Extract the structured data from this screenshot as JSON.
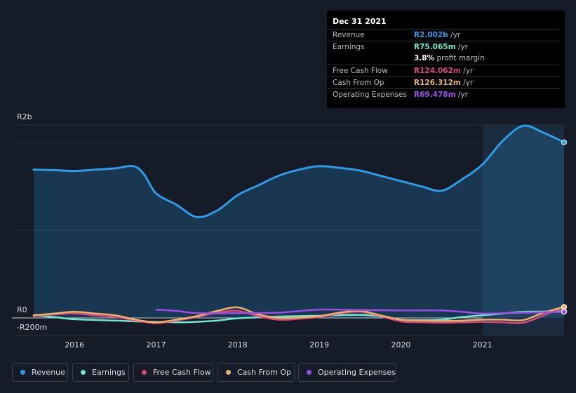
{
  "colors": {
    "revenue": "#2e9be6",
    "earnings": "#6fe8d0",
    "free_cash_flow": "#d9487b",
    "cash_from_op": "#e8b36a",
    "operating_expenses": "#9b4de6",
    "background": "#151b27"
  },
  "tooltip": {
    "date": "Dec 31 2021",
    "rows": [
      {
        "label": "Revenue",
        "value": "R2.002b",
        "unit": " /yr",
        "color": "#2e9be6"
      },
      {
        "label": "Earnings",
        "value": "R75.065m",
        "unit": " /yr",
        "color": "#6fe8d0"
      },
      {
        "label": "",
        "value": "3.8%",
        "unit": " profit margin",
        "color": "#ffffff"
      },
      {
        "label": "Free Cash Flow",
        "value": "R124.062m",
        "unit": " /yr",
        "color": "#d9487b"
      },
      {
        "label": "Cash From Op",
        "value": "R126.312m",
        "unit": " /yr",
        "color": "#e8b36a"
      },
      {
        "label": "Operating Expenses",
        "value": "R69.478m",
        "unit": " /yr",
        "color": "#9b4de6"
      }
    ]
  },
  "legend": [
    {
      "label": "Revenue",
      "color": "#2e9be6"
    },
    {
      "label": "Earnings",
      "color": "#6fe8d0"
    },
    {
      "label": "Free Cash Flow",
      "color": "#d9487b"
    },
    {
      "label": "Cash From Op",
      "color": "#e8b36a"
    },
    {
      "label": "Operating Expenses",
      "color": "#9b4de6"
    }
  ],
  "chart_data": {
    "type": "line",
    "title": "",
    "xlabel": "",
    "ylabel": "",
    "y_unit": "R millions",
    "ylim": [
      -200,
      2200
    ],
    "y_tick_labels": [
      {
        "value": 2000,
        "label": "R2b"
      },
      {
        "value": 0,
        "label": "R0"
      },
      {
        "value": -200,
        "label": "-R200m"
      }
    ],
    "xlim": [
      2015.5,
      2022.0
    ],
    "x_tick_labels": [
      {
        "value": 2016,
        "label": "2016"
      },
      {
        "value": 2017,
        "label": "2017"
      },
      {
        "value": 2018,
        "label": "2018"
      },
      {
        "value": 2019,
        "label": "2019"
      },
      {
        "value": 2020,
        "label": "2020"
      },
      {
        "value": 2021,
        "label": "2021"
      }
    ],
    "highlight_start": 2021.0,
    "series": [
      {
        "name": "Revenue",
        "key": "revenue",
        "fill": true,
        "points": [
          [
            2015.5,
            1690
          ],
          [
            2015.75,
            1685
          ],
          [
            2016.0,
            1675
          ],
          [
            2016.25,
            1690
          ],
          [
            2016.5,
            1705
          ],
          [
            2016.72,
            1730
          ],
          [
            2016.85,
            1640
          ],
          [
            2017.0,
            1420
          ],
          [
            2017.25,
            1290
          ],
          [
            2017.5,
            1150
          ],
          [
            2017.75,
            1225
          ],
          [
            2018.0,
            1400
          ],
          [
            2018.25,
            1510
          ],
          [
            2018.5,
            1620
          ],
          [
            2018.75,
            1690
          ],
          [
            2019.0,
            1730
          ],
          [
            2019.25,
            1710
          ],
          [
            2019.5,
            1680
          ],
          [
            2019.75,
            1620
          ],
          [
            2020.0,
            1560
          ],
          [
            2020.25,
            1500
          ],
          [
            2020.5,
            1450
          ],
          [
            2020.75,
            1580
          ],
          [
            2021.0,
            1750
          ],
          [
            2021.25,
            2020
          ],
          [
            2021.5,
            2190
          ],
          [
            2021.75,
            2110
          ],
          [
            2022.0,
            2002
          ]
        ]
      },
      {
        "name": "Earnings",
        "key": "earnings",
        "points": [
          [
            2015.5,
            30
          ],
          [
            2015.75,
            10
          ],
          [
            2016.0,
            -15
          ],
          [
            2016.5,
            -30
          ],
          [
            2016.75,
            -40
          ],
          [
            2017.0,
            -45
          ],
          [
            2017.25,
            -50
          ],
          [
            2017.5,
            -45
          ],
          [
            2017.75,
            -30
          ],
          [
            2018.0,
            -5
          ],
          [
            2018.5,
            15
          ],
          [
            2019.0,
            25
          ],
          [
            2019.5,
            35
          ],
          [
            2019.75,
            15
          ],
          [
            2020.0,
            -20
          ],
          [
            2020.25,
            -25
          ],
          [
            2020.5,
            -20
          ],
          [
            2020.75,
            10
          ],
          [
            2021.0,
            30
          ],
          [
            2021.25,
            50
          ],
          [
            2021.5,
            70
          ],
          [
            2021.75,
            72
          ],
          [
            2022.0,
            75
          ]
        ]
      },
      {
        "name": "Free Cash Flow",
        "key": "free_cash_flow",
        "points": [
          [
            2015.5,
            20
          ],
          [
            2015.75,
            40
          ],
          [
            2016.0,
            50
          ],
          [
            2016.25,
            30
          ],
          [
            2016.5,
            10
          ],
          [
            2016.75,
            -30
          ],
          [
            2017.0,
            -60
          ],
          [
            2017.25,
            -30
          ],
          [
            2017.5,
            10
          ],
          [
            2017.75,
            60
          ],
          [
            2018.0,
            80
          ],
          [
            2018.25,
            20
          ],
          [
            2018.5,
            -20
          ],
          [
            2018.75,
            -10
          ],
          [
            2019.0,
            10
          ],
          [
            2019.25,
            50
          ],
          [
            2019.5,
            70
          ],
          [
            2019.75,
            20
          ],
          [
            2020.0,
            -40
          ],
          [
            2020.25,
            -50
          ],
          [
            2020.5,
            -55
          ],
          [
            2020.75,
            -50
          ],
          [
            2021.0,
            -45
          ],
          [
            2021.25,
            -50
          ],
          [
            2021.5,
            -55
          ],
          [
            2021.75,
            30
          ],
          [
            2022.0,
            124
          ]
        ]
      },
      {
        "name": "Cash From Op",
        "key": "cash_from_op",
        "points": [
          [
            2015.5,
            30
          ],
          [
            2015.75,
            50
          ],
          [
            2016.0,
            70
          ],
          [
            2016.25,
            50
          ],
          [
            2016.5,
            30
          ],
          [
            2016.75,
            -20
          ],
          [
            2017.0,
            -50
          ],
          [
            2017.25,
            -20
          ],
          [
            2017.5,
            20
          ],
          [
            2017.75,
            80
          ],
          [
            2018.0,
            120
          ],
          [
            2018.25,
            40
          ],
          [
            2018.5,
            0
          ],
          [
            2018.75,
            5
          ],
          [
            2019.0,
            20
          ],
          [
            2019.25,
            60
          ],
          [
            2019.5,
            80
          ],
          [
            2019.75,
            30
          ],
          [
            2020.0,
            -20
          ],
          [
            2020.25,
            -30
          ],
          [
            2020.5,
            -35
          ],
          [
            2020.75,
            -30
          ],
          [
            2021.0,
            -20
          ],
          [
            2021.25,
            -20
          ],
          [
            2021.5,
            -25
          ],
          [
            2021.75,
            60
          ],
          [
            2022.0,
            126
          ]
        ]
      },
      {
        "name": "Operating Expenses",
        "key": "operating_expenses",
        "points": [
          [
            2017.0,
            95
          ],
          [
            2017.25,
            80
          ],
          [
            2017.5,
            55
          ],
          [
            2018.0,
            55
          ],
          [
            2018.5,
            60
          ],
          [
            2019.0,
            95
          ],
          [
            2019.5,
            90
          ],
          [
            2020.0,
            85
          ],
          [
            2020.5,
            85
          ],
          [
            2020.75,
            70
          ],
          [
            2021.0,
            50
          ],
          [
            2021.5,
            60
          ],
          [
            2022.0,
            69
          ]
        ]
      }
    ]
  }
}
